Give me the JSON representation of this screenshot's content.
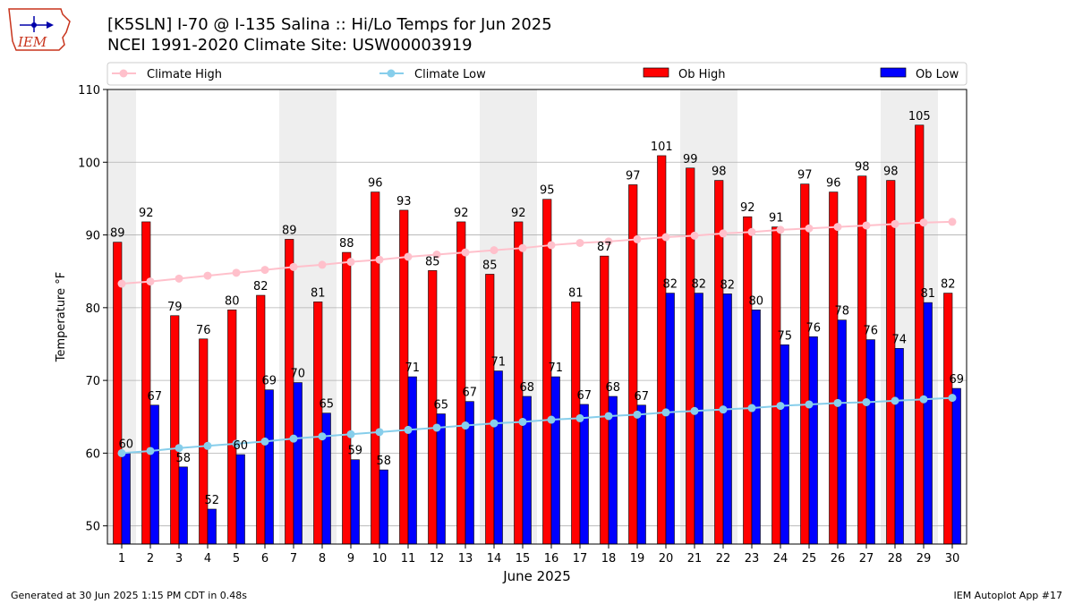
{
  "header": {
    "logo_text": "IEM",
    "title_line1": "[K5SLN] I-70 @ I-135 Salina :: Hi/Lo Temps for Jun 2025",
    "title_line2": "NCEI 1991-2020 Climate Site: USW00003919"
  },
  "footer": {
    "generated": "Generated at 30 Jun 2025 1:15 PM CDT in 0.48s",
    "app": "IEM Autoplot App #17"
  },
  "colors": {
    "ob_high": "#ff0000",
    "ob_low": "#0000ff",
    "climate_high": "#ffc0cb",
    "climate_low": "#87ceeb",
    "weekend_band": "#eeeeee",
    "grid": "#b0b0b0"
  },
  "chart_data": {
    "type": "bar",
    "xlabel": "June 2025",
    "ylabel": "Temperature °F",
    "ylim": [
      47.5,
      110
    ],
    "yticks": [
      50,
      60,
      70,
      80,
      90,
      100,
      110
    ],
    "grid": "horizontal",
    "legend_position": "top",
    "categories": [
      "1",
      "2",
      "3",
      "4",
      "5",
      "6",
      "7",
      "8",
      "9",
      "10",
      "11",
      "12",
      "13",
      "14",
      "15",
      "16",
      "17",
      "18",
      "19",
      "20",
      "21",
      "22",
      "23",
      "24",
      "25",
      "26",
      "27",
      "28",
      "29",
      "30"
    ],
    "weekend_days": [
      1,
      7,
      8,
      14,
      15,
      21,
      22,
      28,
      29
    ],
    "series": [
      {
        "name": "Ob High",
        "kind": "bar",
        "values": [
          89.0,
          91.8,
          78.9,
          75.7,
          79.7,
          81.7,
          89.4,
          80.8,
          87.6,
          95.9,
          93.4,
          85.1,
          91.8,
          84.6,
          91.8,
          94.9,
          80.8,
          87.1,
          96.9,
          100.9,
          99.2,
          97.5,
          92.5,
          91.1,
          97.0,
          95.9,
          98.1,
          97.5,
          105.1,
          82.0
        ],
        "labels": [
          "89",
          "92",
          "79",
          "76",
          "80",
          "82",
          "89",
          "81",
          "88",
          "96",
          "93",
          "85",
          "92",
          "85",
          "92",
          "95",
          "81",
          "87",
          "97",
          "101",
          "99",
          "98",
          "92",
          "91",
          "97",
          "96",
          "98",
          "98",
          "105",
          "82"
        ]
      },
      {
        "name": "Ob Low",
        "kind": "bar",
        "values": [
          60.0,
          66.6,
          58.1,
          52.3,
          59.8,
          68.7,
          69.7,
          65.5,
          59.1,
          57.7,
          70.5,
          65.4,
          67.1,
          71.3,
          67.8,
          70.5,
          66.7,
          67.8,
          66.6,
          82.0,
          82.0,
          81.9,
          79.7,
          74.9,
          76.0,
          78.3,
          75.6,
          74.4,
          80.7,
          68.9
        ],
        "labels": [
          "60",
          "67",
          "58",
          "52",
          "60",
          "69",
          "70",
          "65",
          "59",
          "58",
          "71",
          "65",
          "67",
          "71",
          "68",
          "71",
          "67",
          "68",
          "67",
          "82",
          "82",
          "82",
          "80",
          "75",
          "76",
          "78",
          "76",
          "74",
          "81",
          "69"
        ]
      },
      {
        "name": "Climate High",
        "kind": "line",
        "values": [
          83.3,
          83.6,
          84.0,
          84.4,
          84.8,
          85.2,
          85.6,
          85.9,
          86.3,
          86.6,
          87.0,
          87.3,
          87.6,
          87.9,
          88.2,
          88.6,
          88.9,
          89.1,
          89.4,
          89.7,
          89.9,
          90.2,
          90.4,
          90.7,
          90.9,
          91.1,
          91.3,
          91.5,
          91.7,
          91.8
        ]
      },
      {
        "name": "Climate Low",
        "kind": "line",
        "values": [
          60.0,
          60.3,
          60.7,
          61.0,
          61.3,
          61.6,
          62.0,
          62.3,
          62.6,
          62.9,
          63.2,
          63.5,
          63.8,
          64.1,
          64.3,
          64.6,
          64.8,
          65.1,
          65.3,
          65.6,
          65.8,
          66.0,
          66.2,
          66.5,
          66.7,
          66.9,
          67.0,
          67.2,
          67.4,
          67.6
        ]
      }
    ]
  }
}
